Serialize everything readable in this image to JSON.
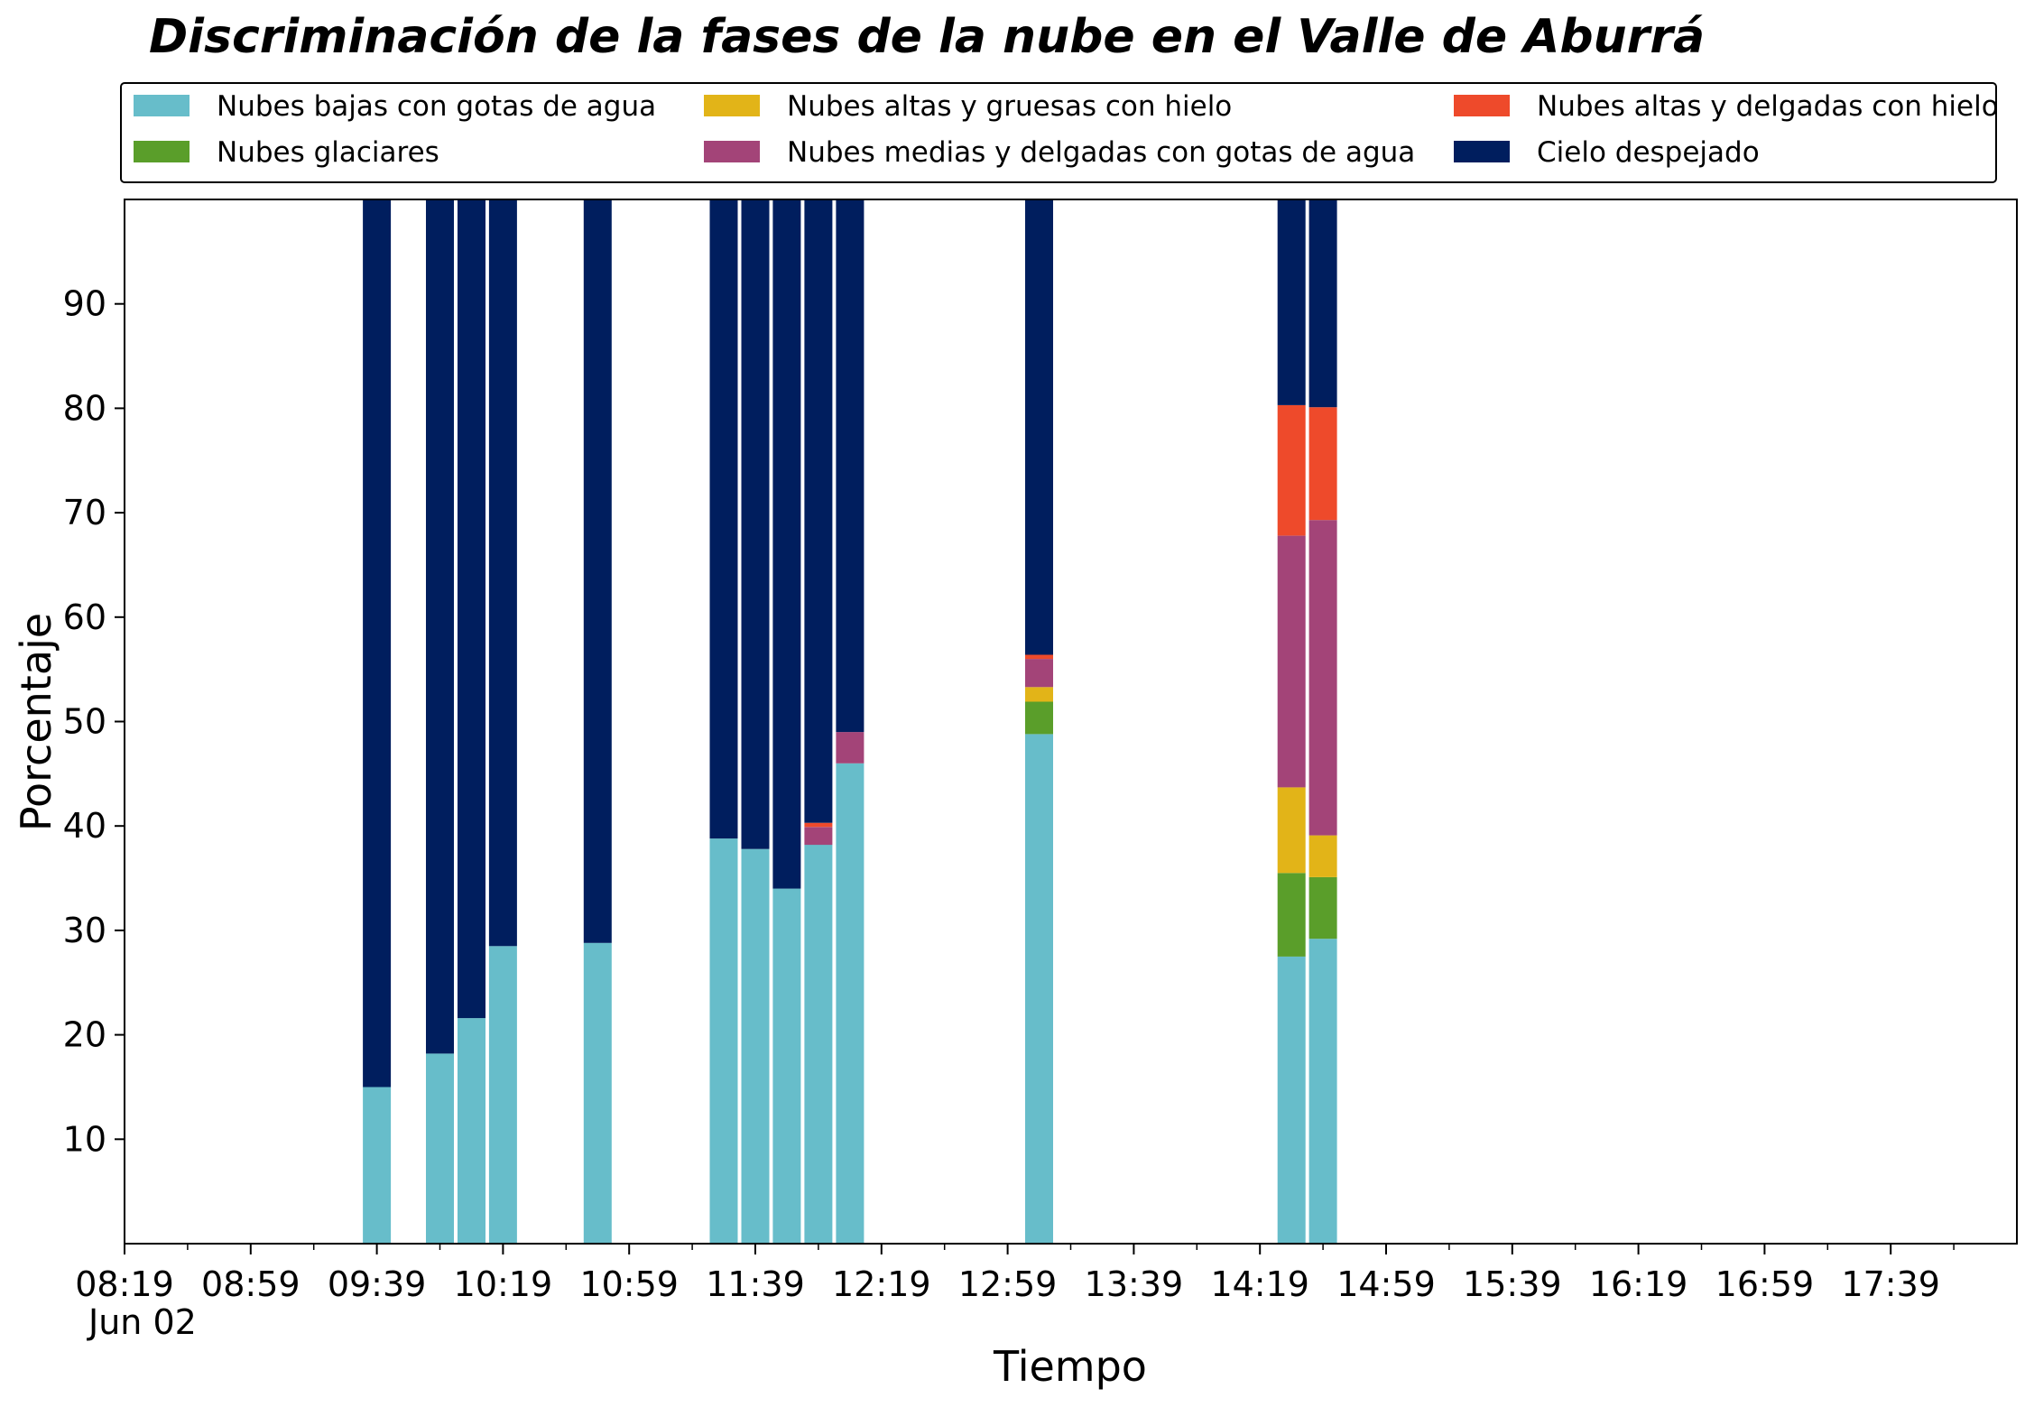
{
  "chart_data": {
    "type": "bar",
    "stacked": true,
    "title": "Discriminación de la fases de la nube en el Valle de Aburrá",
    "xlabel": "Tiempo",
    "ylabel": "Porcentaje",
    "ylim": [
      0,
      100
    ],
    "yticks": [
      10,
      20,
      30,
      40,
      50,
      60,
      70,
      80,
      90
    ],
    "x_range": [
      "08:19",
      "18:19"
    ],
    "x_ticks": [
      "08:19",
      "08:59",
      "09:39",
      "10:19",
      "10:59",
      "11:39",
      "12:19",
      "12:59",
      "13:39",
      "14:19",
      "14:59",
      "15:39",
      "16:19",
      "16:59",
      "17:39"
    ],
    "x_date_label": "Jun 02",
    "legend_position": "top",
    "grid": false,
    "x": [
      "09:39",
      "09:59",
      "10:09",
      "10:19",
      "10:49",
      "11:29",
      "11:39",
      "11:49",
      "11:59",
      "12:09",
      "13:09",
      "14:29",
      "14:39"
    ],
    "series": [
      {
        "name": "Nubes bajas con gotas de agua",
        "color": "#67BDCA",
        "values": [
          15.0,
          18.2,
          21.6,
          28.5,
          28.8,
          38.8,
          37.8,
          34.0,
          38.2,
          46.0,
          48.8,
          27.5,
          29.2
        ]
      },
      {
        "name": "Nubes glaciares",
        "color": "#5A9E2A",
        "values": [
          0,
          0,
          0,
          0,
          0,
          0,
          0,
          0,
          0,
          0,
          3.1,
          8.0,
          5.9
        ]
      },
      {
        "name": "Nubes altas y gruesas con hielo",
        "color": "#E2B418",
        "values": [
          0,
          0,
          0,
          0,
          0,
          0,
          0,
          0,
          0,
          0,
          1.4,
          8.2,
          4.0
        ]
      },
      {
        "name": "Nubes medias y delgadas con gotas de agua",
        "color": "#A34478",
        "values": [
          0,
          0,
          0,
          0,
          0,
          0,
          0,
          0,
          1.7,
          3.0,
          2.7,
          24.1,
          30.2
        ]
      },
      {
        "name": "Nubes altas y delgadas con hielo",
        "color": "#EE4A2B",
        "values": [
          0,
          0,
          0,
          0,
          0,
          0,
          0,
          0,
          0.4,
          0,
          0.4,
          12.5,
          10.8
        ]
      },
      {
        "name": "Cielo despejado",
        "color": "#001E5E",
        "values": [
          85.0,
          81.8,
          78.4,
          71.5,
          71.2,
          61.2,
          62.2,
          66.0,
          59.7,
          51.0,
          43.6,
          19.7,
          19.9
        ]
      }
    ]
  }
}
